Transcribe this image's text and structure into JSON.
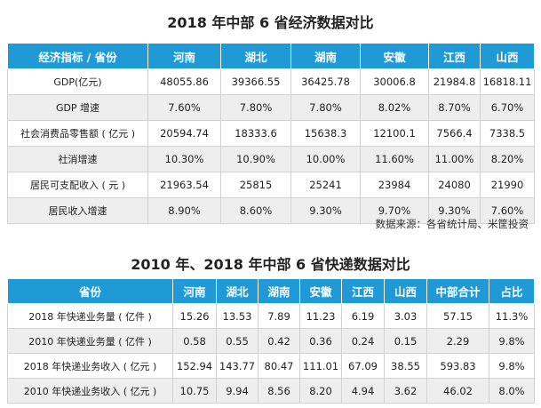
{
  "table1": {
    "title": "2018 年中部 6 省经济数据对比",
    "headers": [
      "经济指标 / 省份",
      "河南",
      "湖北",
      "湖南",
      "安徽",
      "江西",
      "山西"
    ],
    "rows": [
      [
        "GDP(亿元)",
        "48055.86",
        "39366.55",
        "36425.78",
        "30006.8",
        "21984.8",
        "16818.11"
      ],
      [
        "GDP 增速",
        "7.60%",
        "7.80%",
        "7.80%",
        "8.02%",
        "8.70%",
        "6.70%"
      ],
      [
        "社会消费品零售额 ( 亿元 )",
        "20594.74",
        "18333.6",
        "15638.3",
        "12100.1",
        "7566.4",
        "7338.5"
      ],
      [
        "社消增速",
        "10.30%",
        "10.90%",
        "10.00%",
        "11.60%",
        "11.00%",
        "8.20%"
      ],
      [
        "居民可支配收入 ( 元 )",
        "21963.54",
        "25815",
        "25241",
        "23984",
        "24080",
        "21990"
      ],
      [
        "居民收入增速",
        "8.90%",
        "8.60%",
        "9.30%",
        "9.70%",
        "9.30%",
        "7.60%"
      ]
    ],
    "source": "数据来源：各省统计局、米筐投资"
  },
  "table2": {
    "title": "2010 年、2018 年中部 6 省快递数据对比",
    "headers": [
      "省份",
      "河南",
      "湖北",
      "湖南",
      "安徽",
      "江西",
      "山西",
      "中部合计",
      "占比"
    ],
    "rows": [
      [
        "2018 年快递业务量 ( 亿件 )",
        "15.26",
        "13.53",
        "7.89",
        "11.23",
        "6.19",
        "3.03",
        "57.15",
        "11.3%"
      ],
      [
        "2010 年快递业务量 ( 亿件 )",
        "0.58",
        "0.55",
        "0.42",
        "0.36",
        "0.24",
        "0.15",
        "2.29",
        "9.8%"
      ],
      [
        "2018 年快递业务收入 ( 亿元 )",
        "152.94",
        "143.77",
        "80.47",
        "111.01",
        "67.09",
        "38.55",
        "593.83",
        "9.8%"
      ],
      [
        "2010 年快递业务收入 ( 亿元 )",
        "10.75",
        "9.94",
        "8.56",
        "8.20",
        "4.94",
        "3.62",
        "46.02",
        "8.0%"
      ]
    ]
  }
}
